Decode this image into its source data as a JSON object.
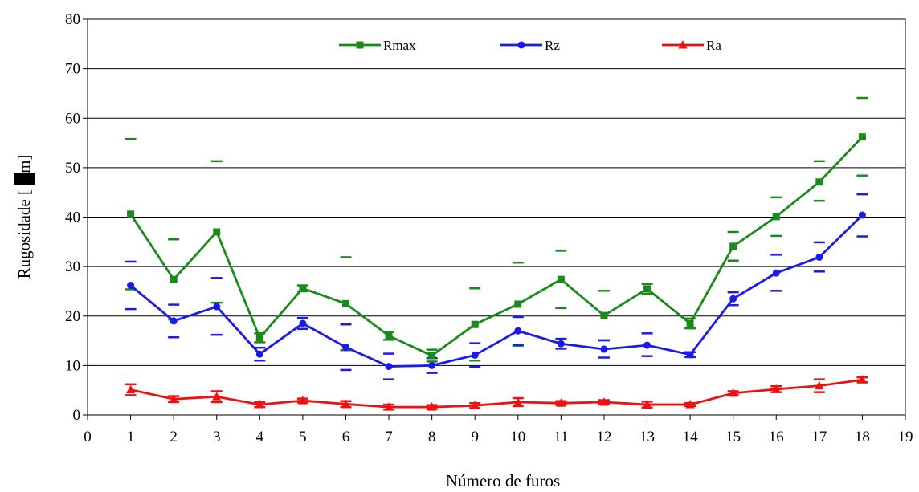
{
  "chart_data": {
    "type": "line",
    "xlabel": "Número de furos",
    "ylabel": "Rugosidade [ █m]",
    "xlim": [
      0,
      19
    ],
    "ylim": [
      0,
      80
    ],
    "xticks": [
      0,
      1,
      2,
      3,
      4,
      5,
      6,
      7,
      8,
      9,
      10,
      11,
      12,
      13,
      14,
      15,
      16,
      17,
      18,
      19
    ],
    "yticks": [
      0,
      10,
      20,
      30,
      40,
      50,
      60,
      70,
      80
    ],
    "grid": "horizontal",
    "legend_position": "top",
    "x": [
      1,
      2,
      3,
      4,
      5,
      6,
      7,
      8,
      9,
      10,
      11,
      12,
      13,
      14,
      15,
      16,
      17,
      18
    ],
    "series": [
      {
        "name": "Rmax",
        "color": "#1a8a1a",
        "marker": "square",
        "values": [
          40.6,
          27.4,
          37.0,
          15.6,
          25.6,
          22.5,
          16.0,
          12.0,
          18.3,
          22.4,
          27.4,
          20.1,
          25.5,
          18.5,
          34.1,
          40.1,
          47.1,
          56.2
        ],
        "upper": [
          55.8,
          35.5,
          51.3,
          16.5,
          26.2,
          31.9,
          16.8,
          13.2,
          25.6,
          30.8,
          33.2,
          25.1,
          26.5,
          19.5,
          37.0,
          44.0,
          51.3,
          64.1
        ],
        "lower": [
          25.4,
          19.3,
          22.7,
          14.7,
          25.0,
          13.1,
          15.2,
          10.8,
          11.0,
          14.0,
          21.6,
          15.1,
          24.5,
          17.5,
          31.2,
          36.2,
          43.3,
          48.4
        ]
      },
      {
        "name": "Rz",
        "color": "#1a1aee",
        "marker": "circle",
        "values": [
          26.2,
          19.0,
          21.9,
          12.3,
          18.5,
          13.7,
          9.8,
          10.0,
          12.1,
          17.0,
          14.4,
          13.3,
          14.1,
          12.2,
          23.5,
          28.7,
          31.9,
          40.4
        ],
        "upper": [
          31.0,
          22.3,
          27.7,
          13.6,
          19.6,
          18.3,
          12.4,
          11.5,
          14.5,
          19.8,
          15.4,
          15.1,
          16.5,
          12.7,
          24.8,
          32.4,
          34.9,
          44.6
        ],
        "lower": [
          21.4,
          15.7,
          16.2,
          11.0,
          17.4,
          9.1,
          7.2,
          8.5,
          9.7,
          14.2,
          13.4,
          11.6,
          11.9,
          11.7,
          22.2,
          25.1,
          29.0,
          36.1
        ]
      },
      {
        "name": "Ra",
        "color": "#ee1111",
        "marker": "triangle",
        "values": [
          5.1,
          3.2,
          3.7,
          2.1,
          2.9,
          2.2,
          1.6,
          1.6,
          1.9,
          2.6,
          2.4,
          2.6,
          2.1,
          2.1,
          4.4,
          5.2,
          5.9,
          7.1
        ],
        "upper": [
          6.2,
          3.8,
          4.8,
          2.6,
          3.3,
          2.8,
          2.1,
          2.0,
          2.4,
          3.4,
          2.8,
          3.0,
          2.7,
          2.4,
          4.8,
          5.8,
          7.2,
          7.6
        ],
        "lower": [
          4.0,
          2.6,
          2.6,
          1.6,
          2.5,
          1.6,
          1.1,
          1.2,
          1.4,
          1.8,
          2.0,
          2.2,
          1.5,
          1.8,
          4.0,
          4.6,
          4.6,
          6.6
        ]
      }
    ]
  }
}
